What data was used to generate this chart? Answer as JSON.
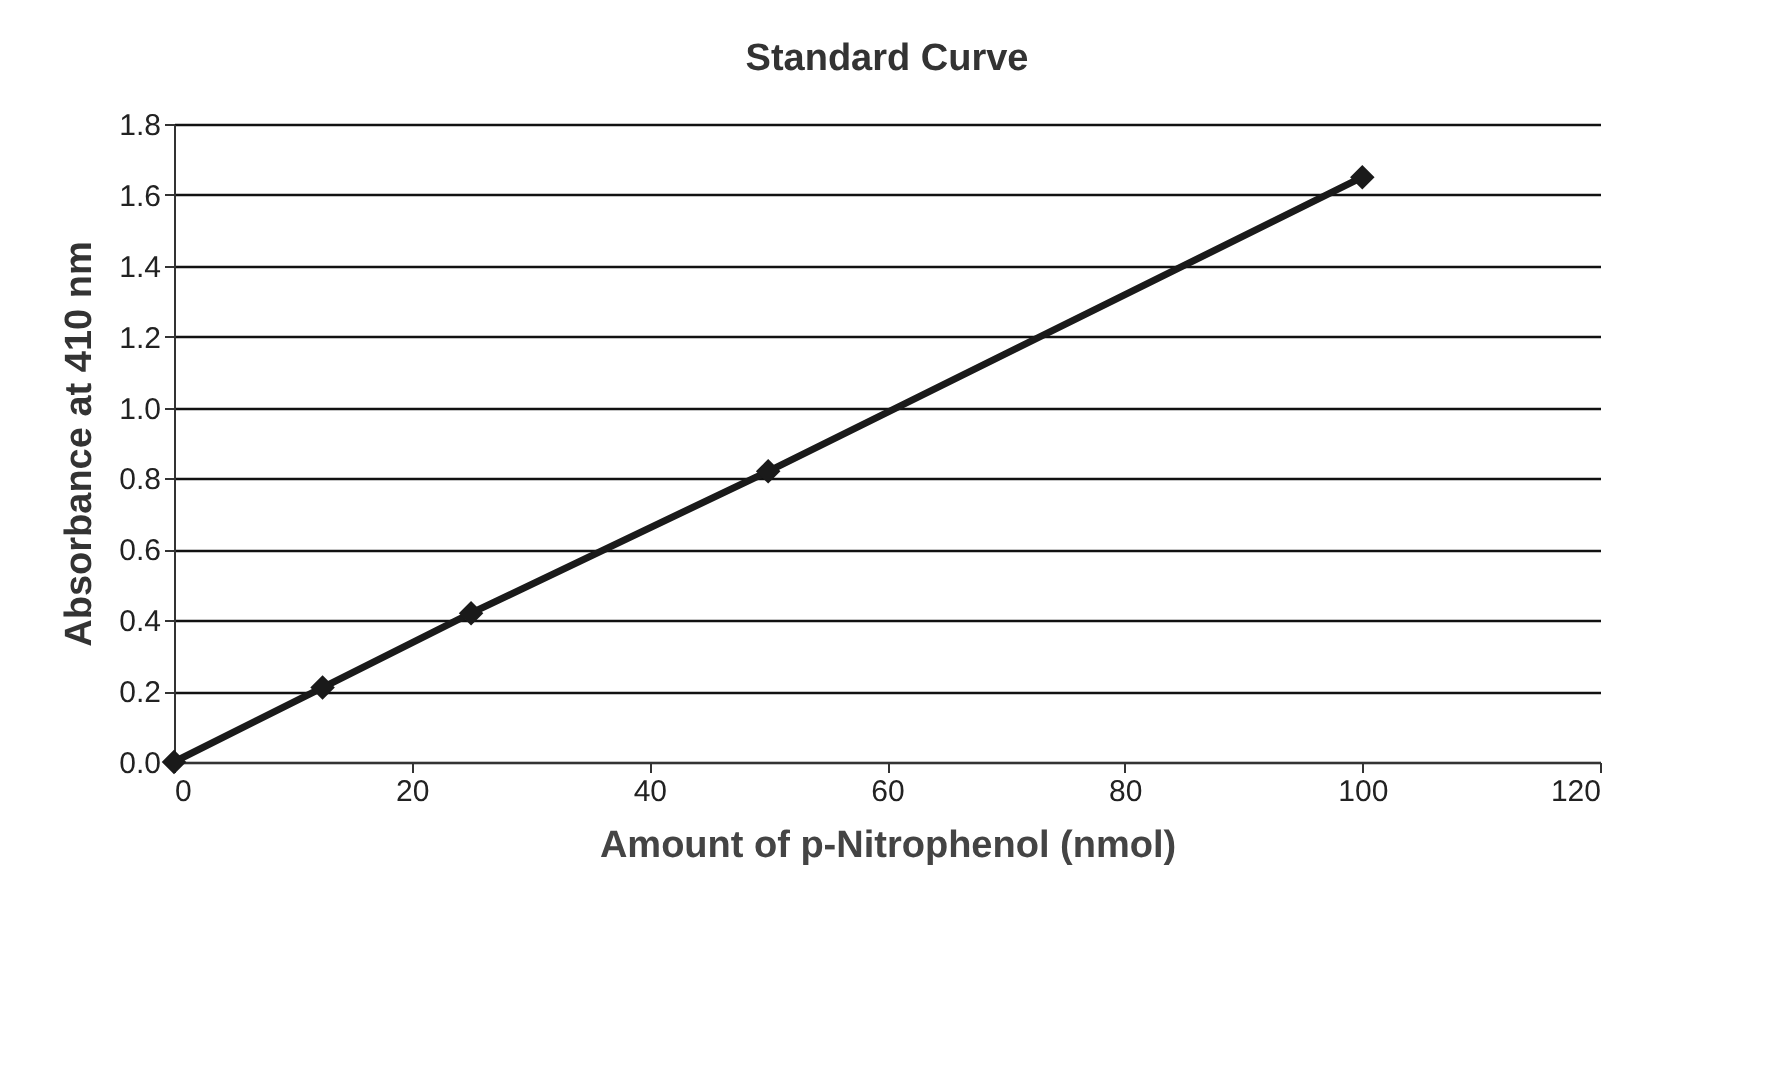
{
  "chart_data": {
    "type": "line",
    "title": "Standard Curve",
    "xlabel": "Amount of p-Nitrophenol (nmol)",
    "ylabel": "Absorbance at 410 nm",
    "x": [
      0,
      12.5,
      25,
      50,
      100
    ],
    "series": [
      {
        "color": "#1a1a1a",
        "values": [
          0,
          0.21,
          0.42,
          0.82,
          1.65
        ]
      }
    ],
    "xlim": [
      0,
      120
    ],
    "xticks": [
      0,
      20,
      40,
      60,
      80,
      100,
      120
    ],
    "ylim": [
      0,
      1.8
    ],
    "yticks": [
      {
        "value": 0,
        "label": "0.0"
      },
      0.2,
      0.4,
      0.6,
      0.8,
      {
        "value": 1,
        "label": "1.0"
      },
      1.2,
      1.4,
      1.6,
      1.8
    ],
    "grid": "y",
    "marker": "diamond",
    "line_style": "solid"
  }
}
